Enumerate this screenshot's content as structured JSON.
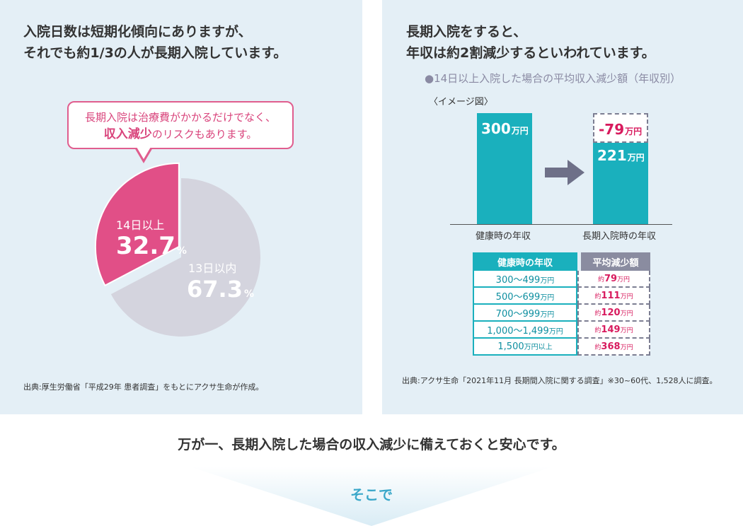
{
  "left_panel": {
    "heading_line1": "入院日数は短期化傾向にありますが、",
    "heading_line2": "それでも約1/3の人が長期入院しています。",
    "bubble_line1": "長期入院は治療費がかかるだけでなく、",
    "bubble_emphasis": "収入減少",
    "bubble_line2_rest": "のリスクもあります。",
    "source": "出典:厚生労働省「平成29年 患者調査」をもとにアクサ生命が作成。"
  },
  "chart_data": [
    {
      "type": "pie",
      "categories": [
        "14日以上",
        "13日以内"
      ],
      "values": [
        32.7,
        67.3
      ],
      "unit": "%",
      "colors": [
        "#e14f87",
        "#d4d4de"
      ]
    },
    {
      "type": "bar",
      "categories": [
        "健康時の年収",
        "長期入院時の年収"
      ],
      "values": [
        300,
        221
      ],
      "decrease": -79,
      "unit": "万円",
      "title": "●14日以上入院した場合の平均収入減少額（年収別）",
      "colors": {
        "bar": "#1ab0bd",
        "decrease": "#d81b5e"
      }
    }
  ],
  "pie_labels": {
    "a_category": "14日以上",
    "a_value": "32.7",
    "b_category": "13日以内",
    "b_value": "67.3",
    "percent": "%"
  },
  "right_panel": {
    "heading_line1": "長期入院をすると、",
    "heading_line2": "年収は約2割減少するといわれています。",
    "subtitle": "●14日以上入院した場合の平均収入減少額（年収別）",
    "image_note": "〈イメージ図〉",
    "bar_healthy_value": "300",
    "bar_after_value": "221",
    "bar_decrease_value": "-79",
    "unit": "万円",
    "cat_healthy": "健康時の年収",
    "cat_after": "長期入院時の年収",
    "source": "出典:アクサ生命「2021年11月 長期間入院に関する調査」※30~60代、1,528人に調査。"
  },
  "table": {
    "headers": [
      "健康時の年収",
      "平均減少額"
    ],
    "rows": [
      {
        "range": "300〜499",
        "range_unit": "万円",
        "prefix": "約",
        "amount": "79",
        "amount_unit": "万円"
      },
      {
        "range": "500〜699",
        "range_unit": "万円",
        "prefix": "約",
        "amount": "111",
        "amount_unit": "万円"
      },
      {
        "range": "700〜999",
        "range_unit": "万円",
        "prefix": "約",
        "amount": "120",
        "amount_unit": "万円"
      },
      {
        "range": "1,000〜1,499",
        "range_unit": "万円",
        "prefix": "約",
        "amount": "149",
        "amount_unit": "万円"
      },
      {
        "range": "1,500",
        "range_unit": "万円以上",
        "prefix": "約",
        "amount": "368",
        "amount_unit": "万円"
      }
    ]
  },
  "footer": {
    "conclusion": "万が一、長期入院した場合の収入減少に備えておくと安心です。",
    "soko": "そこで"
  }
}
